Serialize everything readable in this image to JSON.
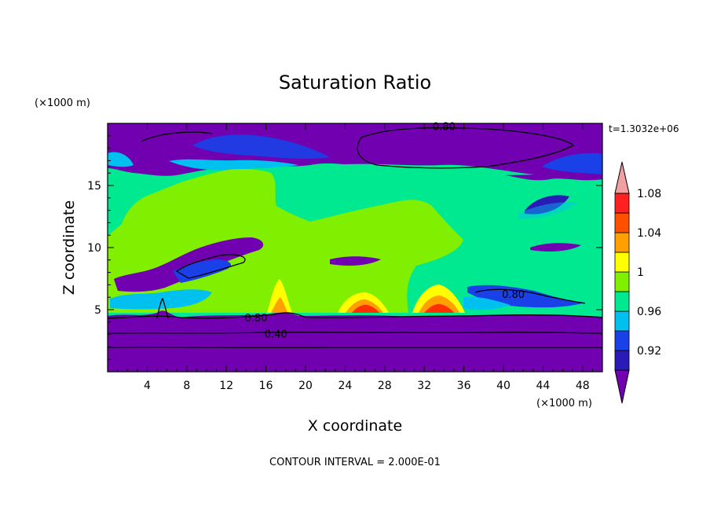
{
  "chart_data": {
    "type": "heatmap",
    "title": "Saturation Ratio",
    "xlabel": "X coordinate",
    "ylabel": "Z coordinate",
    "x_unit": "(×1000 m)",
    "y_unit": "(×1000 m)",
    "time_label": "t=1.3032e+06",
    "footer": "CONTOUR INTERVAL = 2.000E-01",
    "xlim": [
      0,
      50
    ],
    "ylim": [
      0,
      20
    ],
    "x_ticks": [
      4,
      8,
      12,
      16,
      20,
      24,
      28,
      32,
      36,
      40,
      44,
      48
    ],
    "y_ticks": [
      5,
      10,
      15
    ],
    "contour_labels": [
      {
        "text": "0.80",
        "x": 34,
        "z": 19.7
      },
      {
        "text": "0.80",
        "x": 15,
        "z": 4.3
      },
      {
        "text": "0.40",
        "x": 17,
        "z": 3.0
      },
      {
        "text": "0.80",
        "x": 41,
        "z": 6.2
      }
    ],
    "colorbar": {
      "levels": [
        "0.92",
        "",
        "0.96",
        "",
        "1",
        "",
        "1.04",
        "",
        "1.08",
        ""
      ],
      "colors": [
        "#7000b0",
        "#2a1ab8",
        "#1a40e8",
        "#00c0f0",
        "#00e890",
        "#80f000",
        "#ffff00",
        "#ffa000",
        "#ff5000",
        "#ff2020",
        "#f0a0a0"
      ]
    },
    "colors": {
      "dry": "#7000b0",
      "deep_blue": "#2a1ab8",
      "blue": "#1a40e8",
      "cyan": "#00c0f0",
      "teal_green": "#00e890",
      "green": "#80f000",
      "yellow": "#ffff00",
      "orange": "#ffa000",
      "red": "#ff3000"
    }
  }
}
